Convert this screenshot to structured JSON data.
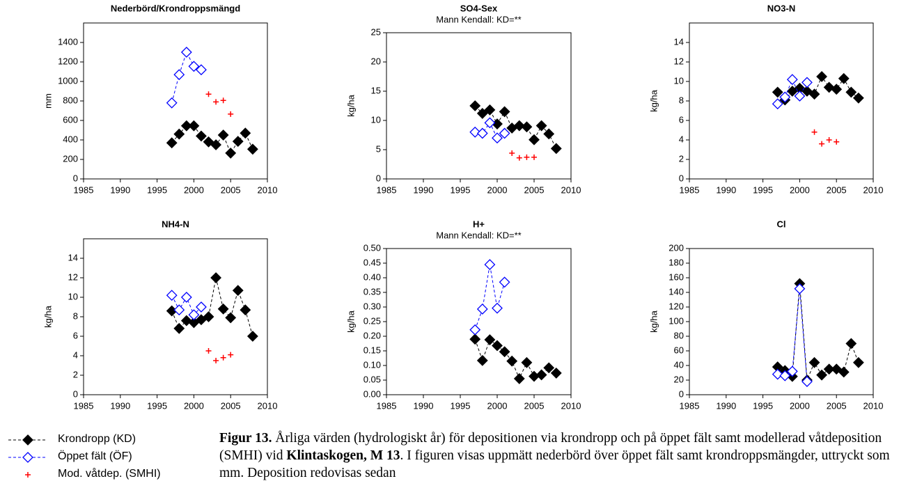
{
  "chart_data": [
    {
      "type": "scatter",
      "title": "Nederbörd/Krondroppsmängd",
      "ylabel": "mm",
      "xlim": [
        1985,
        2010
      ],
      "xticks": [
        1985,
        1990,
        1995,
        2000,
        2005,
        2010
      ],
      "ylim": [
        0,
        1600
      ],
      "yticks": [
        0,
        200,
        400,
        600,
        800,
        1000,
        1200,
        1400
      ],
      "series": [
        {
          "color": "#000000",
          "marker": "diamond-filled",
          "line": "dashed",
          "x": [
            1997,
            1998,
            1999,
            2000,
            2001,
            2002,
            2003,
            2004,
            2005,
            2006,
            2007,
            2008
          ],
          "values": [
            370,
            460,
            545,
            545,
            440,
            380,
            350,
            450,
            265,
            385,
            470,
            305
          ]
        },
        {
          "color": "#0000ff",
          "marker": "diamond-open",
          "line": "dashed",
          "x": [
            1997,
            1998,
            1999,
            2000,
            2001
          ],
          "values": [
            780,
            1070,
            1300,
            1155,
            1120
          ]
        },
        {
          "color": "#ff0000",
          "marker": "plus",
          "line": "none",
          "x": [
            2002,
            2003,
            2004,
            2005
          ],
          "values": [
            870,
            790,
            805,
            665
          ]
        }
      ]
    },
    {
      "type": "scatter",
      "title": "SO4-Sex",
      "subtitle": "Mann Kendall: KD=**",
      "ylabel": "kg/ha",
      "xlim": [
        1985,
        2010
      ],
      "xticks": [
        1985,
        1990,
        1995,
        2000,
        2005,
        2010
      ],
      "ylim": [
        0,
        25
      ],
      "yticks": [
        0,
        5,
        10,
        15,
        20,
        25
      ],
      "series": [
        {
          "color": "#000000",
          "marker": "diamond-filled",
          "line": "dashed",
          "x": [
            1997,
            1998,
            1999,
            2000,
            2001,
            2002,
            2003,
            2004,
            2005,
            2006,
            2007,
            2008
          ],
          "values": [
            12.5,
            11.2,
            11.8,
            9.4,
            11.5,
            8.7,
            9.1,
            8.9,
            6.7,
            9.1,
            7.7,
            5.2
          ]
        },
        {
          "color": "#0000ff",
          "marker": "diamond-open",
          "line": "dashed",
          "x": [
            1997,
            1998,
            1999,
            2000,
            2001
          ],
          "values": [
            8.0,
            7.8,
            9.6,
            7.0,
            7.8
          ]
        },
        {
          "color": "#ff0000",
          "marker": "plus",
          "line": "none",
          "x": [
            2002,
            2003,
            2004,
            2005
          ],
          "values": [
            4.4,
            3.6,
            3.7,
            3.7
          ]
        }
      ]
    },
    {
      "type": "scatter",
      "title": "NO3-N",
      "ylabel": "kg/ha",
      "xlim": [
        1985,
        2010
      ],
      "xticks": [
        1985,
        1990,
        1995,
        2000,
        2005,
        2010
      ],
      "ylim": [
        0,
        16
      ],
      "yticks": [
        0,
        2,
        4,
        6,
        8,
        10,
        12,
        14
      ],
      "series": [
        {
          "color": "#000000",
          "marker": "diamond-filled",
          "line": "dashed",
          "x": [
            1997,
            1998,
            1999,
            2000,
            2001,
            2002,
            2003,
            2004,
            2005,
            2006,
            2007,
            2008
          ],
          "values": [
            8.9,
            8.1,
            9.0,
            9.3,
            9.0,
            8.7,
            10.5,
            9.4,
            9.2,
            10.3,
            8.9,
            8.3
          ]
        },
        {
          "color": "#0000ff",
          "marker": "diamond-open",
          "line": "dashed",
          "x": [
            1997,
            1998,
            1999,
            2000,
            2001
          ],
          "values": [
            7.7,
            8.4,
            10.2,
            8.5,
            9.9
          ]
        },
        {
          "color": "#ff0000",
          "marker": "plus",
          "line": "none",
          "x": [
            2002,
            2003,
            2004,
            2005
          ],
          "values": [
            4.8,
            3.6,
            4.0,
            3.8
          ]
        }
      ]
    },
    {
      "type": "scatter",
      "title": "NH4-N",
      "ylabel": "kg/ha",
      "xlim": [
        1985,
        2010
      ],
      "xticks": [
        1985,
        1990,
        1995,
        2000,
        2005,
        2010
      ],
      "ylim": [
        0,
        16
      ],
      "yticks": [
        0,
        2,
        4,
        6,
        8,
        10,
        12,
        14
      ],
      "series": [
        {
          "color": "#000000",
          "marker": "diamond-filled",
          "line": "dashed",
          "x": [
            1997,
            1998,
            1999,
            2000,
            2001,
            2002,
            2003,
            2004,
            2005,
            2006,
            2007,
            2008
          ],
          "values": [
            8.6,
            6.8,
            7.6,
            7.4,
            7.7,
            8.0,
            12.0,
            8.8,
            7.9,
            10.7,
            8.7,
            6.0
          ]
        },
        {
          "color": "#0000ff",
          "marker": "diamond-open",
          "line": "dashed",
          "x": [
            1997,
            1998,
            1999,
            2000,
            2001
          ],
          "values": [
            10.2,
            8.7,
            10.0,
            8.2,
            9.0
          ]
        },
        {
          "color": "#ff0000",
          "marker": "plus",
          "line": "none",
          "x": [
            2002,
            2003,
            2004,
            2005
          ],
          "values": [
            4.5,
            3.5,
            3.8,
            4.1
          ]
        }
      ]
    },
    {
      "type": "scatter",
      "title": "H+",
      "subtitle": "Mann Kendall: KD=**",
      "ylabel": "kg/ha",
      "xlim": [
        1985,
        2010
      ],
      "xticks": [
        1985,
        1990,
        1995,
        2000,
        2005,
        2010
      ],
      "ylim": [
        0,
        0.5
      ],
      "yticks": [
        {
          "value": 0,
          "label": "0.00"
        },
        {
          "value": 0.05,
          "label": "0.05"
        },
        {
          "value": 0.1,
          "label": "0.10"
        },
        {
          "value": 0.15,
          "label": "0.15"
        },
        {
          "value": 0.2,
          "label": "0.20"
        },
        {
          "value": 0.25,
          "label": "0.25"
        },
        {
          "value": 0.3,
          "label": "0.30"
        },
        {
          "value": 0.35,
          "label": "0.35"
        },
        {
          "value": 0.4,
          "label": "0.40"
        },
        {
          "value": 0.45,
          "label": "0.45"
        },
        {
          "value": 0.5,
          "label": "0.50"
        }
      ],
      "series": [
        {
          "color": "#000000",
          "marker": "diamond-filled",
          "line": "dashed",
          "x": [
            1997,
            1998,
            1999,
            2000,
            2001,
            2002,
            2003,
            2004,
            2005,
            2006,
            2007,
            2008
          ],
          "values": [
            0.19,
            0.117,
            0.188,
            0.168,
            0.147,
            0.115,
            0.055,
            0.11,
            0.063,
            0.068,
            0.092,
            0.074
          ]
        },
        {
          "color": "#0000ff",
          "marker": "diamond-open",
          "line": "dashed",
          "x": [
            1997,
            1998,
            1999,
            2000,
            2001
          ],
          "values": [
            0.222,
            0.293,
            0.445,
            0.296,
            0.385
          ]
        }
      ]
    },
    {
      "type": "scatter",
      "title": "Cl",
      "ylabel": "kg/ha",
      "xlim": [
        1985,
        2010
      ],
      "xticks": [
        1985,
        1990,
        1995,
        2000,
        2005,
        2010
      ],
      "ylim": [
        0,
        200
      ],
      "yticks": [
        0,
        20,
        40,
        60,
        80,
        100,
        120,
        140,
        160,
        180,
        200
      ],
      "series": [
        {
          "color": "#000000",
          "marker": "diamond-filled",
          "line": "dashed",
          "x": [
            1997,
            1998,
            1999,
            2000,
            2001,
            2002,
            2003,
            2004,
            2005,
            2006,
            2007,
            2008
          ],
          "values": [
            38,
            33,
            25,
            152,
            20,
            44,
            27,
            35,
            35,
            31,
            70,
            44
          ]
        },
        {
          "color": "#0000ff",
          "marker": "diamond-open",
          "line": "dashed",
          "x": [
            1997,
            1998,
            1999,
            2000,
            2001
          ],
          "values": [
            28,
            26,
            32,
            145,
            18
          ]
        }
      ]
    }
  ],
  "legend": [
    {
      "name": "Krondropp (KD)",
      "color": "#000000",
      "marker": "diamond-filled",
      "line": "dashed"
    },
    {
      "name": "Öppet fält (ÖF)",
      "color": "#0000ff",
      "marker": "diamond-open",
      "line": "dashed"
    },
    {
      "name": "Mod. våtdep. (SMHI)",
      "color": "#ff0000",
      "marker": "plus",
      "line": "none"
    }
  ],
  "caption": {
    "label": "Figur 13.",
    "text1": " Årliga värden (hydrologiskt år) för depositionen via krondropp och på öppet fält samt modellerad våtdeposition (SMHI) vid ",
    "site": "Klintaskogen, M 13",
    "text2": ". I figuren visas uppmätt nederbörd över öppet fält samt krondroppsmängder, uttryckt som mm. Deposition redovisas sedan"
  }
}
